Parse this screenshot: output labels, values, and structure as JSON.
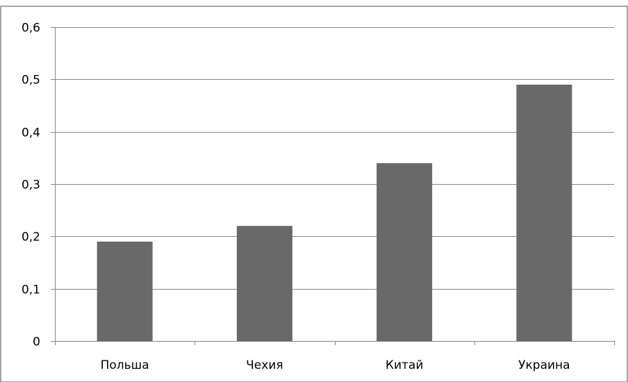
{
  "chart_data": {
    "type": "bar",
    "categories": [
      "Польша",
      "Чехия",
      "Китай",
      "Украина"
    ],
    "values": [
      0.19,
      0.22,
      0.34,
      0.49
    ],
    "title": "",
    "xlabel": "",
    "ylabel": "",
    "ylim": [
      0,
      0.6
    ],
    "yticks": [
      0,
      0.1,
      0.2,
      0.3,
      0.4,
      0.5,
      0.6
    ],
    "ytick_labels": [
      "0",
      "0,1",
      "0,2",
      "0,3",
      "0,4",
      "0,5",
      "0,6"
    ],
    "grid": true,
    "legend": "none",
    "colors": {
      "bar": "#696969",
      "gridline": "#868686",
      "axis": "#868686",
      "frame": "#868686"
    }
  }
}
